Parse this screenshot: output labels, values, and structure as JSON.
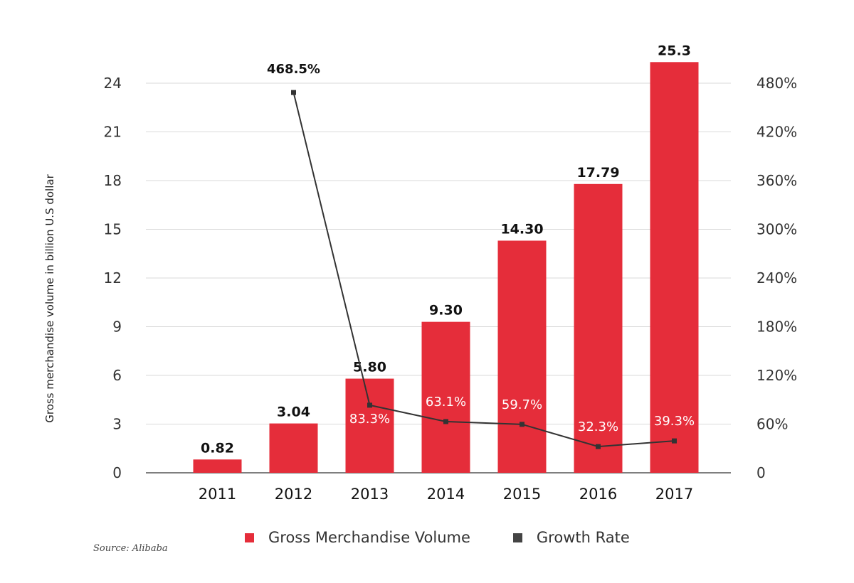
{
  "colors": {
    "bar": "#e52d3a",
    "line": "#333333",
    "grid": "#d9d9d9",
    "axis": "#555555"
  },
  "legend": {
    "bar_label": "Gross Merchandise Volume",
    "line_label": "Growth Rate"
  },
  "source": "Source: Alibaba",
  "chart_data": {
    "type": "bar",
    "title": "",
    "xlabel": "",
    "ylabel": "Gross merchandise volume in billion U.S dollar",
    "categories": [
      "2011",
      "2012",
      "2013",
      "2014",
      "2015",
      "2016",
      "2017"
    ],
    "series": [
      {
        "name": "Gross Merchandise Volume",
        "type": "bar",
        "axis": "left",
        "values": [
          0.82,
          3.04,
          5.8,
          9.3,
          14.3,
          17.79,
          25.3
        ],
        "labels": [
          "0.82",
          "3.04",
          "5.80",
          "9.30",
          "14.30",
          "17.79",
          "25.3"
        ]
      },
      {
        "name": "Growth Rate",
        "type": "line",
        "axis": "right",
        "values": [
          null,
          468.5,
          83.3,
          63.1,
          59.7,
          32.3,
          39.3
        ],
        "labels": [
          "",
          "468.5%",
          "83.3%",
          "63.1%",
          "59.7%",
          "32.3%",
          "39.3%"
        ]
      }
    ],
    "ylim": [
      0,
      24
    ],
    "yticks": [
      "0",
      "3",
      "6",
      "9",
      "12",
      "15",
      "18",
      "21",
      "24"
    ],
    "ytick_values": [
      0,
      3,
      6,
      9,
      12,
      15,
      18,
      21,
      24
    ],
    "y2lim": [
      0,
      480
    ],
    "y2ticks": [
      "0",
      "60%",
      "120%",
      "180%",
      "240%",
      "300%",
      "360%",
      "420%",
      "480%"
    ],
    "y2tick_values": [
      0,
      60,
      120,
      180,
      240,
      300,
      360,
      420,
      480
    ],
    "grid": true,
    "legend_position": "bottom"
  }
}
